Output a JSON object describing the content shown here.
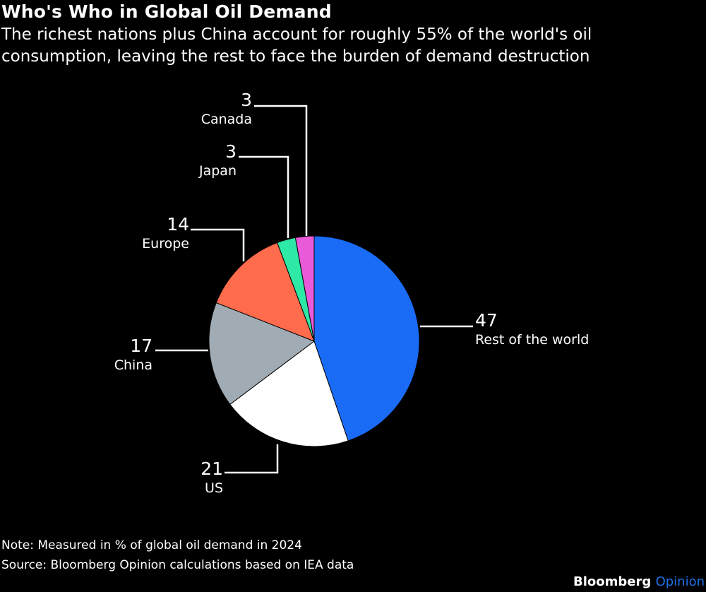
{
  "title": "Who's Who in Global Oil Demand",
  "subtitle": "The richest nations plus China account for roughly 55% of the world's oil consumption, leaving the rest to face the burden of demand destruction",
  "note": "Note: Measured in % of global oil demand in 2024",
  "source": "Source: Bloomberg Opinion calculations based on IEA data",
  "brand": {
    "name": "Bloomberg",
    "product": "Opinion",
    "product_color": "#1f6fe8"
  },
  "chart_data": {
    "type": "pie",
    "unit": "% of global oil demand in 2024",
    "slices": [
      {
        "label": "Rest of the world",
        "value": 47,
        "display": "47",
        "color": "#1a6cf7"
      },
      {
        "label": "US",
        "value": 21,
        "display": "21",
        "color": "#ffffff"
      },
      {
        "label": "China",
        "value": 17,
        "display": "17",
        "color": "#a1abb4"
      },
      {
        "label": "Europe",
        "value": 14,
        "display": "14",
        "color": "#ff6b4d"
      },
      {
        "label": "Japan",
        "value": 3,
        "display": "3",
        "color": "#2ee8a6"
      },
      {
        "label": "Canada",
        "value": 3,
        "display": "3",
        "color": "#e85ad8"
      }
    ]
  }
}
